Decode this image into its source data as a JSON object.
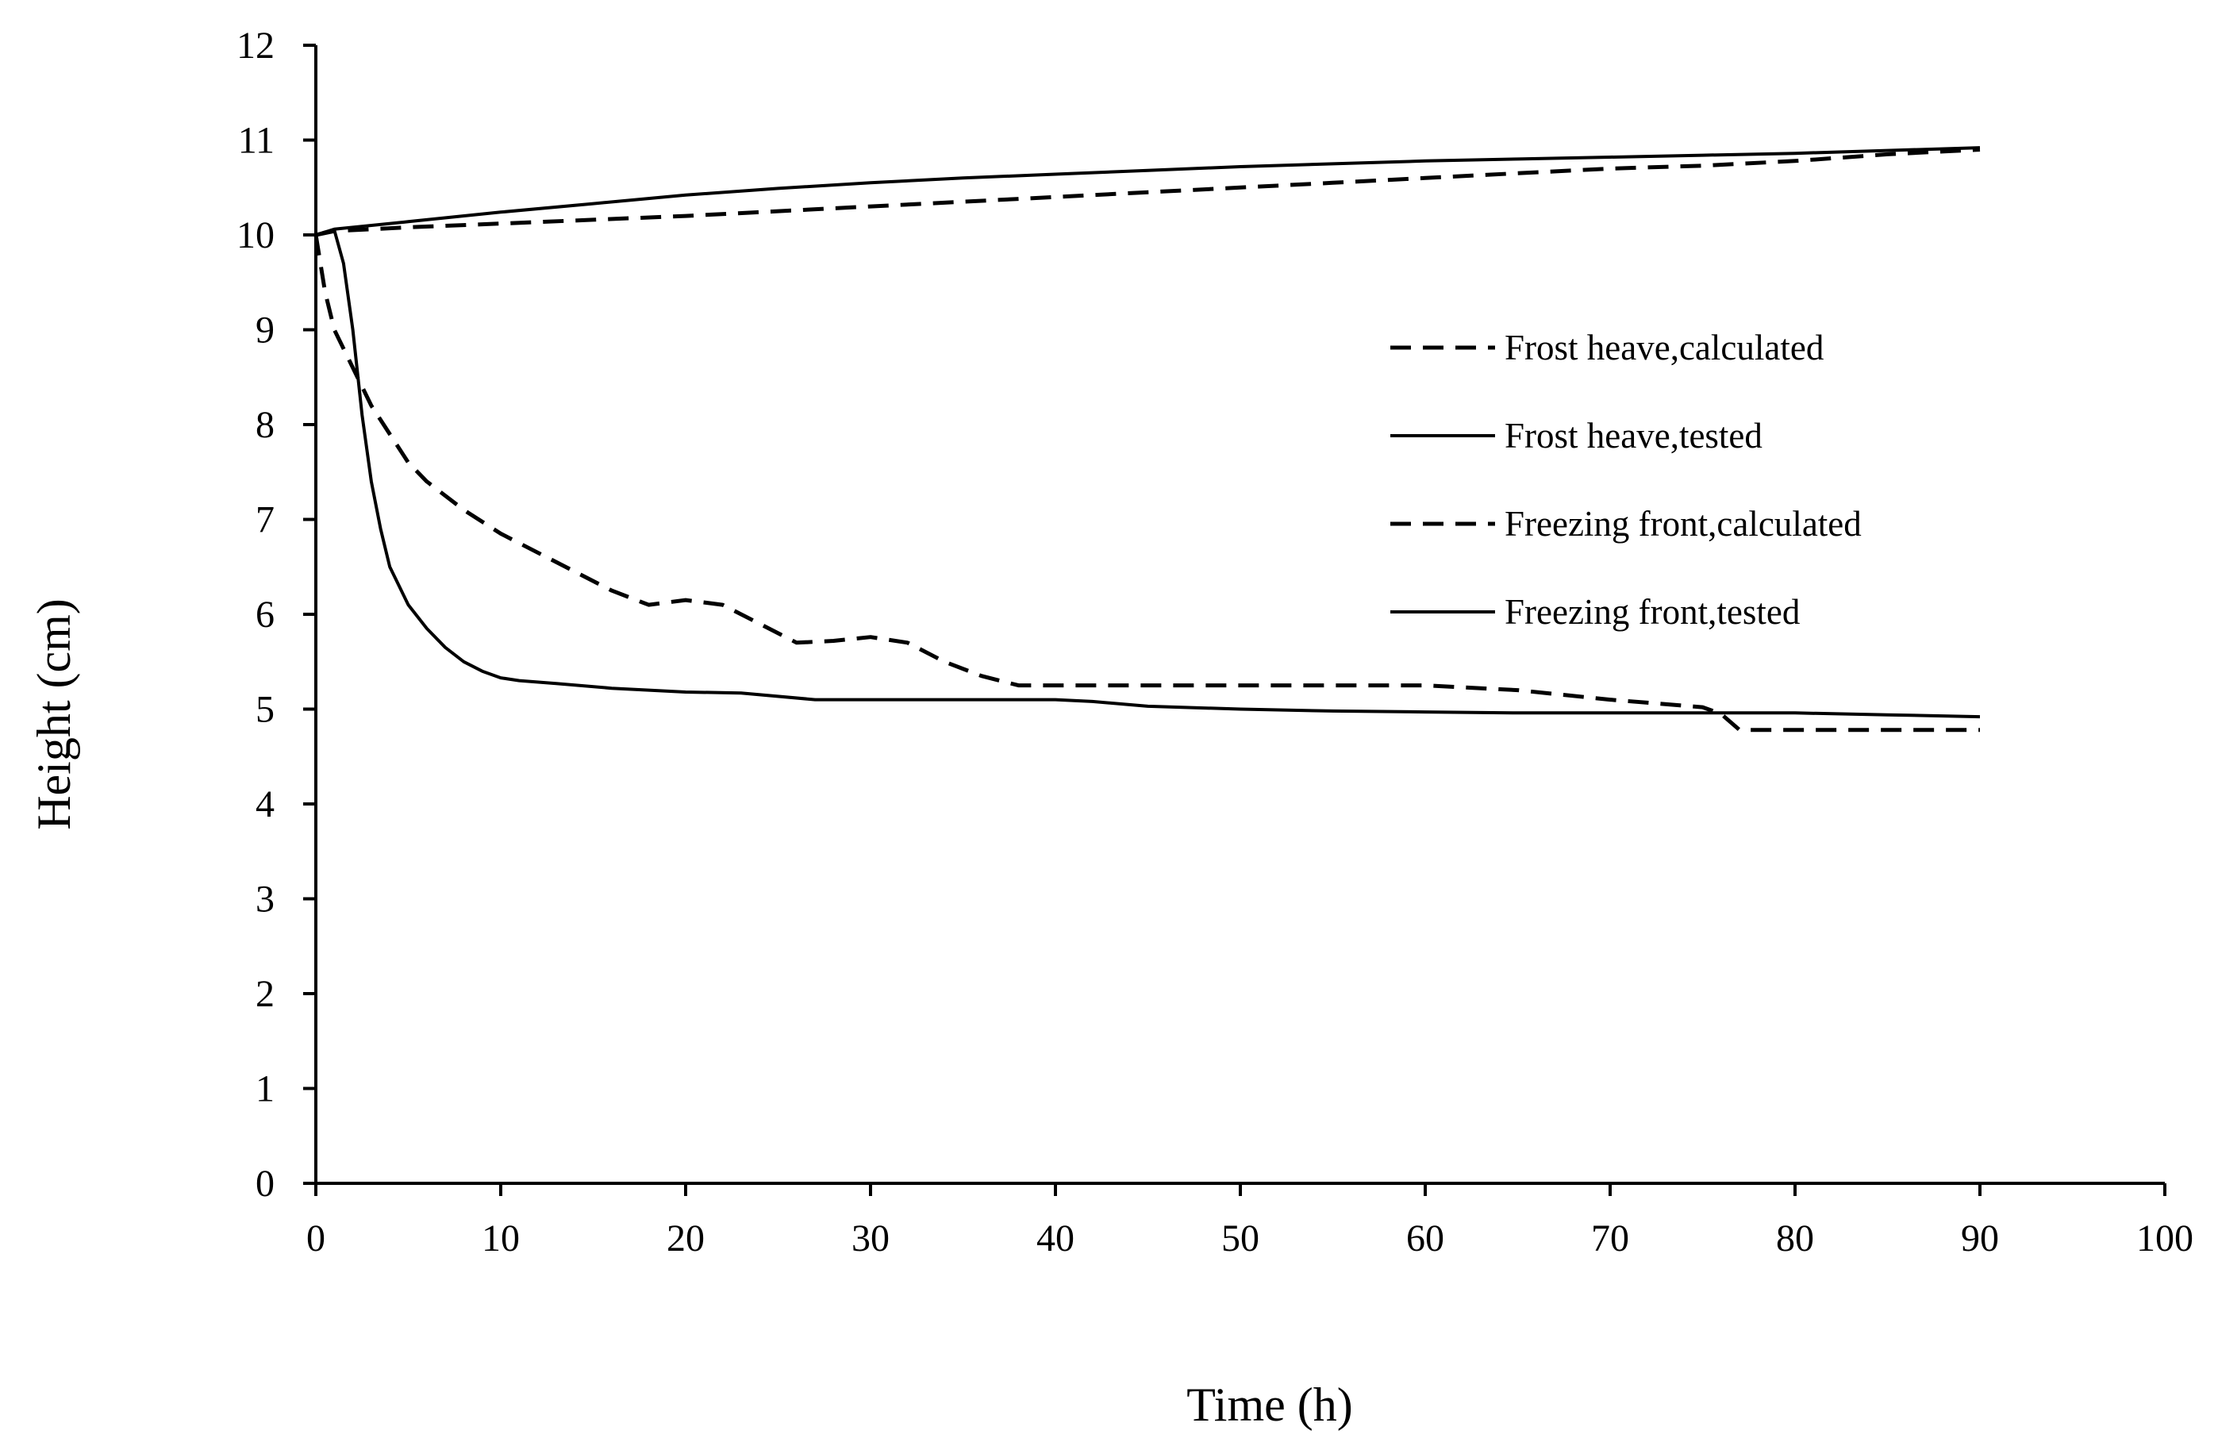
{
  "chart_data": {
    "type": "line",
    "title": "",
    "xlabel": "Time (h)",
    "ylabel": "Height (cm)",
    "xlim": [
      0,
      100
    ],
    "ylim": [
      0,
      12
    ],
    "xticks": [
      0,
      10,
      20,
      30,
      40,
      50,
      60,
      70,
      80,
      90,
      100
    ],
    "yticks": [
      0,
      1,
      2,
      3,
      4,
      5,
      6,
      7,
      8,
      9,
      10,
      11,
      12
    ],
    "grid": false,
    "legend_position": "right",
    "colors": {
      "line": "#000000",
      "axis": "#000000",
      "background": "#ffffff"
    },
    "series": [
      {
        "name": "Frost heave,calculated",
        "style": "dashed",
        "x": [
          0,
          1,
          5,
          10,
          15,
          20,
          25,
          30,
          35,
          40,
          45,
          50,
          55,
          60,
          65,
          70,
          75,
          80,
          85,
          90
        ],
        "y": [
          10.0,
          10.04,
          10.08,
          10.12,
          10.16,
          10.2,
          10.25,
          10.3,
          10.35,
          10.4,
          10.45,
          10.5,
          10.55,
          10.6,
          10.65,
          10.7,
          10.73,
          10.78,
          10.85,
          10.9
        ]
      },
      {
        "name": "Frost heave,tested",
        "style": "solid",
        "x": [
          0,
          1,
          5,
          10,
          15,
          20,
          25,
          30,
          35,
          40,
          45,
          50,
          55,
          60,
          65,
          70,
          75,
          80,
          85,
          90
        ],
        "y": [
          10.0,
          10.06,
          10.14,
          10.24,
          10.33,
          10.42,
          10.49,
          10.55,
          10.6,
          10.64,
          10.68,
          10.72,
          10.75,
          10.78,
          10.8,
          10.82,
          10.84,
          10.86,
          10.89,
          10.92
        ]
      },
      {
        "name": "Freezing front,calculated",
        "style": "dashed",
        "x": [
          0,
          0.5,
          1,
          2,
          3,
          4,
          5,
          6,
          8,
          10,
          12,
          14,
          16,
          18,
          20,
          22,
          24,
          26,
          28,
          30,
          32,
          34,
          36,
          38,
          40,
          45,
          50,
          55,
          60,
          65,
          70,
          75,
          76,
          77,
          80,
          85,
          90
        ],
        "y": [
          10.0,
          9.4,
          9.0,
          8.6,
          8.2,
          7.9,
          7.6,
          7.4,
          7.1,
          6.85,
          6.65,
          6.45,
          6.25,
          6.1,
          6.15,
          6.1,
          5.9,
          5.7,
          5.72,
          5.76,
          5.7,
          5.5,
          5.35,
          5.25,
          5.25,
          5.25,
          5.25,
          5.25,
          5.25,
          5.2,
          5.1,
          5.02,
          4.95,
          4.78,
          4.78,
          4.78,
          4.78
        ]
      },
      {
        "name": "Freezing front,tested",
        "style": "solid",
        "x": [
          0,
          0.5,
          1,
          1.5,
          2,
          2.5,
          3,
          3.5,
          4,
          5,
          6,
          7,
          8,
          9,
          10,
          11,
          13,
          16,
          20,
          23,
          27,
          30,
          35,
          40,
          42,
          45,
          50,
          55,
          60,
          65,
          70,
          75,
          80,
          85,
          90
        ],
        "y": [
          10.0,
          10.03,
          10.05,
          9.7,
          9.0,
          8.1,
          7.4,
          6.9,
          6.5,
          6.1,
          5.85,
          5.65,
          5.5,
          5.4,
          5.33,
          5.3,
          5.27,
          5.22,
          5.18,
          5.17,
          5.1,
          5.1,
          5.1,
          5.1,
          5.08,
          5.03,
          5.0,
          4.98,
          4.97,
          4.96,
          4.96,
          4.96,
          4.96,
          4.94,
          4.92
        ]
      }
    ]
  }
}
